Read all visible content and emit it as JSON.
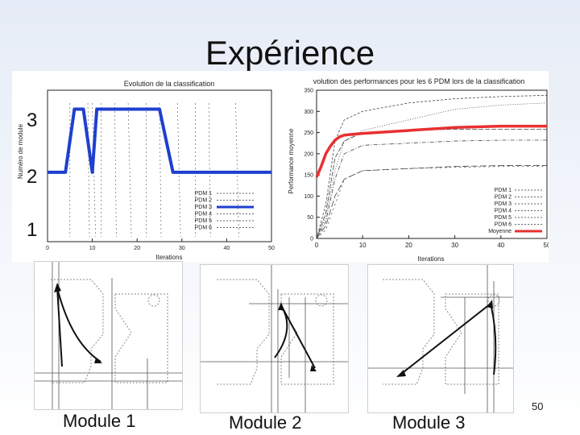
{
  "slide": {
    "title": "Expérience",
    "page_number": "50"
  },
  "module_labels": [
    "3",
    "2",
    "1"
  ],
  "chart_data": [
    {
      "type": "line",
      "title": "Evolution de la classification",
      "xlabel": "Iterations",
      "ylabel": "Numéro de module",
      "xlim": [
        0,
        50
      ],
      "ylim": [
        0.9,
        3.3
      ],
      "x_ticks": [
        0,
        10,
        20,
        30,
        40,
        50
      ],
      "legend": [
        "PDM 1",
        "PDM 2",
        "PDM 3",
        "PDM 4",
        "PDM 5",
        "PDM 6"
      ],
      "series": [
        {
          "name": "PDM 3",
          "color": "#1f3fd0",
          "points": [
            [
              0,
              2
            ],
            [
              4,
              2
            ],
            [
              6,
              3
            ],
            [
              8,
              3
            ],
            [
              10,
              2
            ],
            [
              11,
              3
            ],
            [
              25,
              3
            ],
            [
              28,
              2
            ],
            [
              50,
              2
            ]
          ]
        }
      ]
    },
    {
      "type": "line",
      "title": "volution des performances pour les 6 PDM lors de la classification",
      "xlabel": "Iterations",
      "ylabel": "Performance moyenne",
      "xlim": [
        0,
        50
      ],
      "ylim": [
        0,
        350
      ],
      "x_ticks": [
        0,
        10,
        20,
        30,
        40,
        50
      ],
      "y_ticks": [
        0,
        50,
        100,
        150,
        200,
        250,
        300,
        350
      ],
      "legend": [
        "PDM 1",
        "PDM 2",
        "PDM 3",
        "PDM 4",
        "PDM 5",
        "PDM 6",
        "Moyenne"
      ],
      "series": [
        {
          "name": "PDM 1",
          "color": "#444444",
          "x": [
            0,
            2,
            4,
            6,
            10,
            20,
            30,
            40,
            50
          ],
          "y": [
            0,
            60,
            190,
            230,
            250,
            255,
            258,
            258,
            258
          ]
        },
        {
          "name": "PDM 2",
          "color": "#444444",
          "x": [
            0,
            2,
            4,
            6,
            10,
            20,
            30,
            40,
            50
          ],
          "y": [
            0,
            80,
            230,
            280,
            300,
            320,
            330,
            335,
            338
          ]
        },
        {
          "name": "PDM 3",
          "color": "#444444",
          "x": [
            0,
            2,
            4,
            6,
            10,
            20,
            30,
            40,
            50
          ],
          "y": [
            0,
            50,
            160,
            230,
            255,
            280,
            305,
            315,
            320
          ]
        },
        {
          "name": "PDM 4",
          "color": "#444444",
          "x": [
            0,
            2,
            4,
            6,
            10,
            20,
            30,
            40,
            50
          ],
          "y": [
            0,
            40,
            140,
            200,
            220,
            225,
            230,
            232,
            232
          ]
        },
        {
          "name": "PDM 5",
          "color": "#444444",
          "x": [
            0,
            2,
            4,
            6,
            10,
            20,
            30,
            40,
            50
          ],
          "y": [
            0,
            30,
            100,
            140,
            160,
            165,
            170,
            172,
            172
          ]
        },
        {
          "name": "PDM 6",
          "color": "#444444",
          "x": [
            0,
            2,
            4,
            6,
            10,
            20,
            30,
            40,
            50
          ],
          "y": [
            0,
            20,
            80,
            140,
            160,
            165,
            168,
            170,
            170
          ]
        },
        {
          "name": "Moyenne",
          "color": "#e83030",
          "x": [
            0,
            1,
            2,
            3,
            4,
            5,
            6,
            8,
            10,
            20,
            30,
            40,
            50
          ],
          "y": [
            145,
            170,
            200,
            218,
            232,
            240,
            244,
            246,
            248,
            255,
            262,
            265,
            265
          ]
        }
      ]
    }
  ],
  "modules": [
    {
      "caption": "Module 1"
    },
    {
      "caption": "Module 2"
    },
    {
      "caption": "Module 3"
    }
  ]
}
